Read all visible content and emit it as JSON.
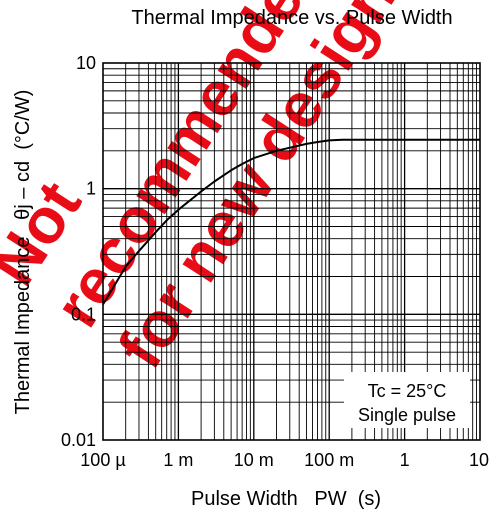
{
  "chart_data": {
    "type": "line",
    "title": "Thermal Impedance vs. Pulse Width",
    "xlabel": "Pulse Width   PW  (s)",
    "ylabel": "Thermal Impedance   θj – cd  (°C/W)",
    "x_scale": "log",
    "y_scale": "log",
    "xlim": [
      0.0001,
      10
    ],
    "ylim": [
      0.01,
      10
    ],
    "x_ticks": [
      {
        "value": 0.0001,
        "label": "100 µ"
      },
      {
        "value": 0.001,
        "label": "1 m"
      },
      {
        "value": 0.01,
        "label": "10 m"
      },
      {
        "value": 0.1,
        "label": "100 m"
      },
      {
        "value": 1,
        "label": "1"
      },
      {
        "value": 10,
        "label": "10"
      }
    ],
    "y_ticks": [
      {
        "value": 0.01,
        "label": "0.01"
      },
      {
        "value": 0.1,
        "label": "0.1"
      },
      {
        "value": 1,
        "label": "1"
      },
      {
        "value": 10,
        "label": "10"
      }
    ],
    "grid": true,
    "annotations": [
      "Tc = 25°C",
      "Single pulse"
    ],
    "watermark": "Not recommended for new design",
    "series": [
      {
        "x": [
          0.0001,
          0.00015,
          0.0002,
          0.0003,
          0.0005,
          0.0007,
          0.001,
          0.002,
          0.003,
          0.005,
          0.007,
          0.01,
          0.02,
          0.03,
          0.05,
          0.07,
          0.1,
          0.15,
          0.3,
          1,
          10
        ],
        "y": [
          0.12,
          0.18,
          0.24,
          0.32,
          0.45,
          0.56,
          0.68,
          0.95,
          1.14,
          1.4,
          1.57,
          1.75,
          2.0,
          2.12,
          2.27,
          2.35,
          2.42,
          2.45,
          2.45,
          2.45,
          2.45
        ]
      }
    ]
  },
  "colors": {
    "line": "#000000",
    "grid": "#000000",
    "watermark": "#e8000a"
  }
}
